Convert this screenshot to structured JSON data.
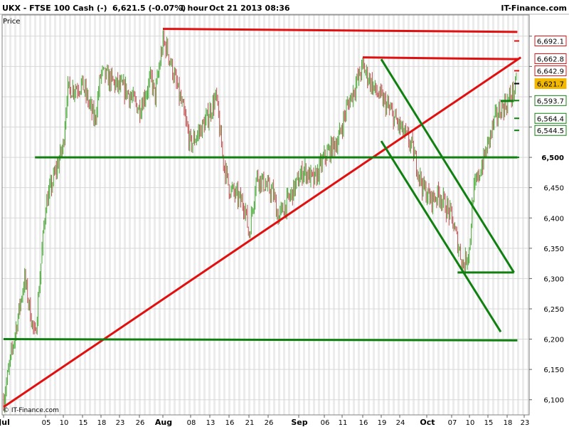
{
  "header": {
    "symbol": "UKX - FTSE 100 Cash (-)",
    "quote": "6,621.5 (-0.07%)",
    "timeframe": "1 hour",
    "datetime": "Oct 21 2013 08:36",
    "brand": "IT-Finance.com"
  },
  "panel_label": "Price",
  "footer_copyright": "© IT-Finance.com",
  "colors": {
    "background": "#ffffff",
    "grid_stripe": "#ececec",
    "candle_up": "#44a832",
    "candle_down": "#c05050",
    "trendline_red": "#e01010",
    "trendline_green": "#108010",
    "current_price_badge": "#f2b800"
  },
  "chart_data": {
    "type": "candlestick",
    "timeframe": "1 hour",
    "ylim": [
      6075,
      6735
    ],
    "x_ticks": [
      "Jul",
      "05",
      "10",
      "15",
      "18",
      "23",
      "26",
      "Aug",
      "08",
      "13",
      "16",
      "21",
      "26",
      "Sep",
      "06",
      "11",
      "16",
      "19",
      "24",
      "Oct",
      "07",
      "10",
      "15",
      "18",
      "23"
    ],
    "y_ticks": [
      6100,
      6150,
      6200,
      6250,
      6300,
      6350,
      6400,
      6450,
      6500,
      6550,
      6600,
      6650,
      6700
    ],
    "y_tick_labels": [
      "6,100",
      "6,150",
      "6,200",
      "6,250",
      "6,300",
      "6,350",
      "6,400",
      "6,450",
      "6,500",
      "",
      "",
      "",
      ""
    ],
    "price_levels": [
      {
        "label": "6,692.1",
        "value": 6692.1,
        "color": "red"
      },
      {
        "label": "6,662.8",
        "value": 6662.8,
        "color": "red"
      },
      {
        "label": "6,642.9",
        "value": 6642.9,
        "color": "red"
      },
      {
        "label": "6,621.7",
        "value": 6621.7,
        "color": "current"
      },
      {
        "label": "6,593.7",
        "value": 6593.7,
        "color": "green"
      },
      {
        "label": "6,564.4",
        "value": 6564.4,
        "color": "green"
      },
      {
        "label": "6,544.5",
        "value": 6544.5,
        "color": "green"
      },
      {
        "label": "6,500",
        "value": 6500,
        "color": "green"
      }
    ],
    "trendlines": [
      {
        "color": "red",
        "from": [
          "Jul 01",
          6088
        ],
        "to": [
          "Oct 22",
          6665
        ]
      },
      {
        "color": "red",
        "from": [
          "Aug 01",
          6712
        ],
        "to": [
          "Oct 21",
          6707
        ]
      },
      {
        "color": "red",
        "from": [
          "Sep 16",
          6665
        ],
        "to": [
          "Oct 21",
          6662
        ]
      },
      {
        "color": "green",
        "from": [
          "Jul 04",
          6500
        ],
        "to": [
          "Oct 21",
          6500
        ]
      },
      {
        "color": "green",
        "from": [
          "Jul 01",
          6200
        ],
        "to": [
          "Oct 21",
          6198
        ]
      },
      {
        "color": "green",
        "from": [
          "Sep 19",
          6662
        ],
        "to": [
          "Oct 20",
          6310
        ]
      },
      {
        "color": "green",
        "from": [
          "Sep 19",
          6527
        ],
        "to": [
          "Oct 17",
          6212
        ]
      },
      {
        "color": "green",
        "from": [
          "Oct 08",
          6310
        ],
        "to": [
          "Oct 20",
          6310
        ]
      },
      {
        "color": "green",
        "from": [
          "Oct 17",
          6593
        ],
        "to": [
          "Oct 20",
          6593
        ]
      }
    ],
    "price_path": [
      [
        "Jul 01",
        6100
      ],
      [
        "Jul 02",
        6200
      ],
      [
        "Jul 03",
        6300
      ],
      [
        "Jul 04",
        6200
      ],
      [
        "Jul 05",
        6420
      ],
      [
        "Jul 08",
        6480
      ],
      [
        "Jul 10",
        6520
      ],
      [
        "Jul 11",
        6610
      ],
      [
        "Jul 15",
        6620
      ],
      [
        "Jul 17",
        6560
      ],
      [
        "Jul 18",
        6640
      ],
      [
        "Jul 22",
        6620
      ],
      [
        "Jul 24",
        6610
      ],
      [
        "Jul 26",
        6580
      ],
      [
        "Jul 29",
        6630
      ],
      [
        "Jul 30",
        6600
      ],
      [
        "Aug 01",
        6690
      ],
      [
        "Aug 02",
        6680
      ],
      [
        "Aug 06",
        6580
      ],
      [
        "Aug 08",
        6520
      ],
      [
        "Aug 12",
        6560
      ],
      [
        "Aug 14",
        6600
      ],
      [
        "Aug 15",
        6500
      ],
      [
        "Aug 16",
        6450
      ],
      [
        "Aug 20",
        6420
      ],
      [
        "Aug 21",
        6370
      ],
      [
        "Aug 23",
        6470
      ],
      [
        "Aug 27",
        6440
      ],
      [
        "Aug 28",
        6400
      ],
      [
        "Aug 30",
        6430
      ],
      [
        "Sep 02",
        6480
      ],
      [
        "Sep 04",
        6460
      ],
      [
        "Sep 06",
        6500
      ],
      [
        "Sep 10",
        6530
      ],
      [
        "Sep 12",
        6580
      ],
      [
        "Sep 16",
        6650
      ],
      [
        "Sep 18",
        6610
      ],
      [
        "Sep 20",
        6590
      ],
      [
        "Sep 23",
        6560
      ],
      [
        "Sep 25",
        6540
      ],
      [
        "Sep 27",
        6520
      ],
      [
        "Sep 30",
        6450
      ],
      [
        "Oct 02",
        6430
      ],
      [
        "Oct 04",
        6440
      ],
      [
        "Oct 07",
        6400
      ],
      [
        "Oct 08",
        6360
      ],
      [
        "Oct 09",
        6320
      ],
      [
        "Oct 10",
        6350
      ],
      [
        "Oct 11",
        6440
      ],
      [
        "Oct 14",
        6500
      ],
      [
        "Oct 16",
        6560
      ],
      [
        "Oct 17",
        6580
      ],
      [
        "Oct 18",
        6590
      ],
      [
        "Oct 21",
        6621
      ]
    ]
  }
}
